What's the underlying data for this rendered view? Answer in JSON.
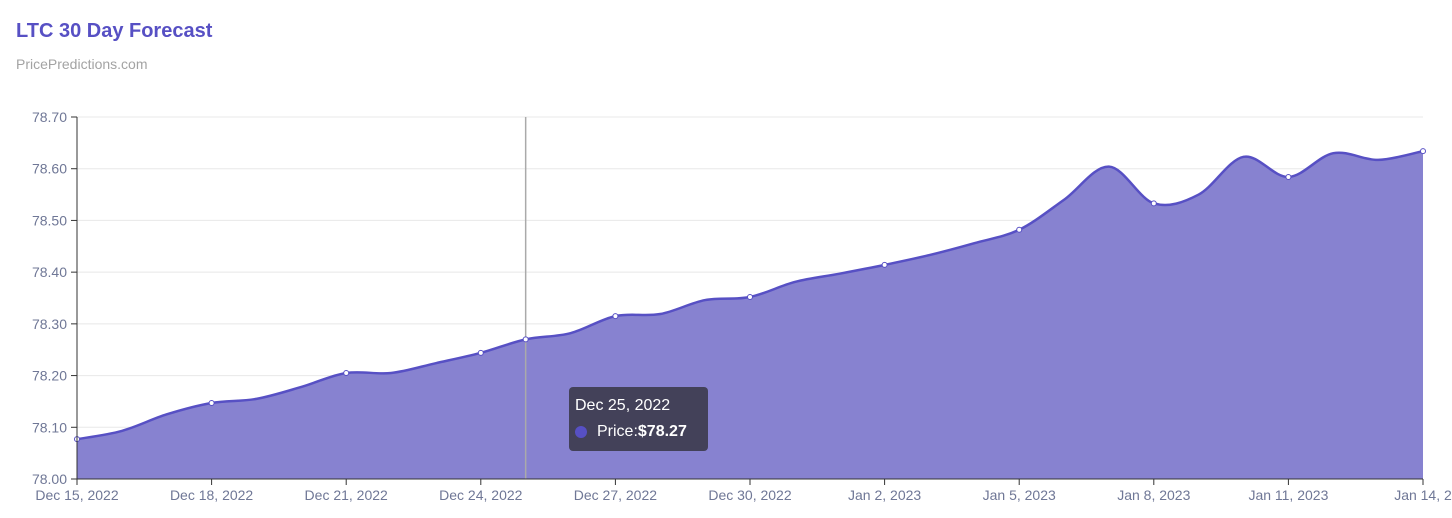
{
  "header": {
    "title": "LTC 30 Day Forecast",
    "subtitle": "PricePredictions.com"
  },
  "tooltip": {
    "date": "Dec 25, 2022",
    "label": "Price: ",
    "value": "$78.27",
    "index": 10
  },
  "colors": {
    "accent": "#5750c4",
    "fill": "#8782d0"
  },
  "chart_data": {
    "type": "area",
    "title": "LTC 30 Day Forecast",
    "xlabel": "",
    "ylabel": "",
    "ylim": [
      78.0,
      78.7
    ],
    "yticks": [
      "78.00",
      "78.10",
      "78.20",
      "78.30",
      "78.40",
      "78.50",
      "78.60",
      "78.70"
    ],
    "xtick_labels": [
      "Dec 15, 2022",
      "Dec 18, 2022",
      "Dec 21, 2022",
      "Dec 24, 2022",
      "Dec 27, 2022",
      "Dec 30, 2022",
      "Jan 2, 2023",
      "Jan 5, 2023",
      "Jan 8, 2023",
      "Jan 11, 2023",
      "Jan 14, 2"
    ],
    "series": [
      {
        "name": "Price",
        "values": [
          78.077,
          78.093,
          78.125,
          78.147,
          78.155,
          78.178,
          78.205,
          78.205,
          78.224,
          78.244,
          78.27,
          78.282,
          78.315,
          78.319,
          78.346,
          78.352,
          78.381,
          78.397,
          78.414,
          78.433,
          78.456,
          78.482,
          78.54,
          78.604,
          78.533,
          78.55,
          78.623,
          78.584,
          78.63,
          78.617,
          78.634
        ]
      }
    ],
    "grid": true
  }
}
